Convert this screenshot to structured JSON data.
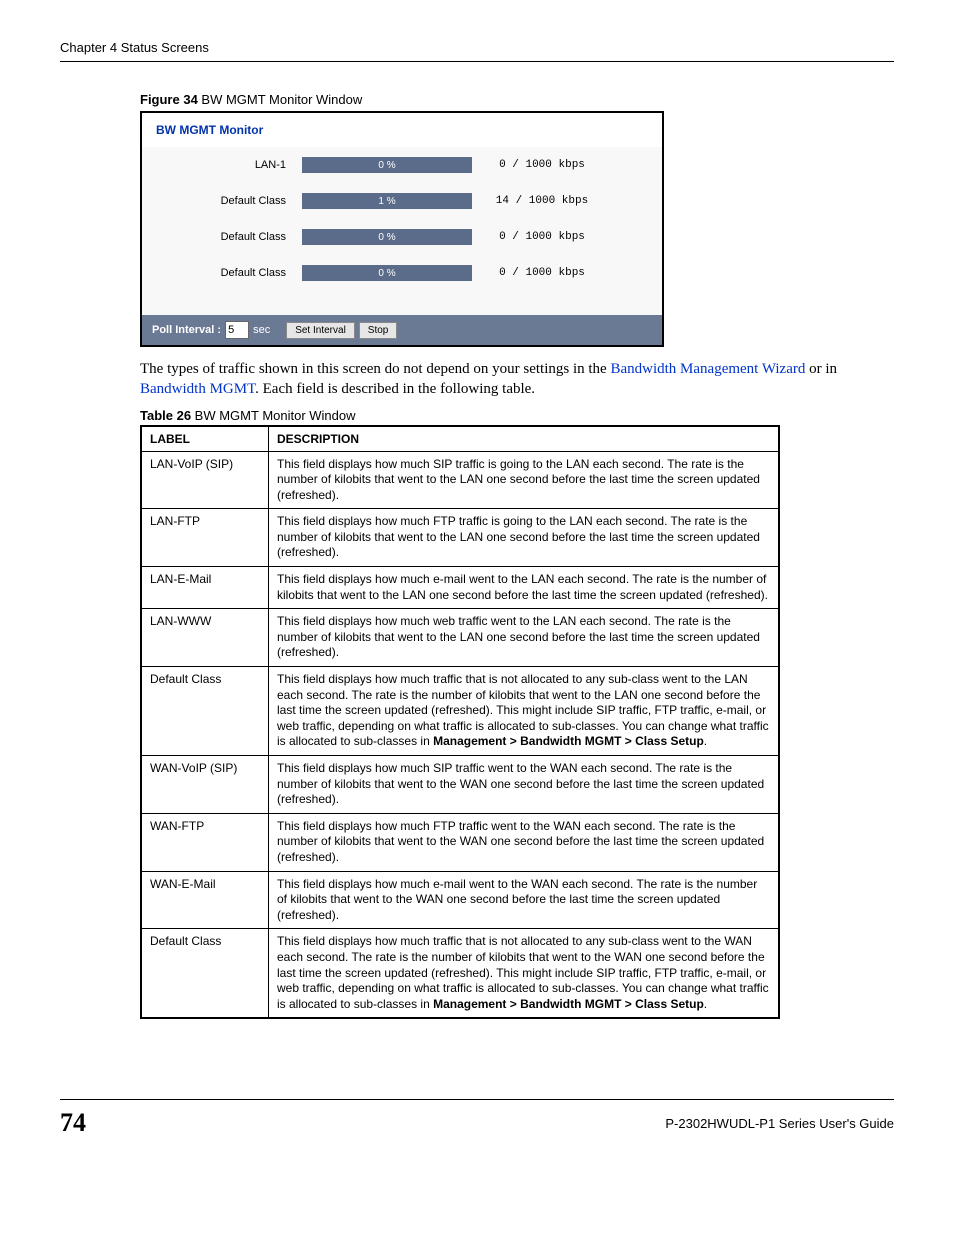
{
  "chapter_header": "Chapter 4 Status Screens",
  "figure_caption_bold": "Figure 34",
  "figure_caption_rest": "   BW MGMT Monitor Window",
  "monitor": {
    "title": "BW MGMT Monitor",
    "rows": [
      {
        "label": "LAN-1",
        "percent": "0 %",
        "value": "0 / 1000  kbps"
      },
      {
        "label": "Default Class",
        "percent": "1 %",
        "value": "14 / 1000  kbps"
      },
      {
        "label": "Default Class",
        "percent": "0 %",
        "value": "0 / 1000  kbps"
      },
      {
        "label": "Default Class",
        "percent": "0 %",
        "value": "0 / 1000  kbps"
      }
    ],
    "footer": {
      "poll_label": "Poll Interval :",
      "poll_value": "5",
      "sec_label": "sec",
      "set_interval_btn": "Set Interval",
      "stop_btn": "Stop"
    },
    "bar_color": "#5a6c8a",
    "footer_bg": "#6b7a94"
  },
  "body_text_pre": "The types of traffic shown in this screen do not depend on your settings in the ",
  "link1": "Bandwidth Management Wizard",
  "body_text_mid": " or in ",
  "link2": "Bandwidth MGMT",
  "body_text_post": ". Each field is described in the following table.",
  "table_caption_bold": "Table 26",
  "table_caption_rest": "   BW MGMT Monitor Window",
  "table_headers": {
    "label": "LABEL",
    "description": "DESCRIPTION"
  },
  "table_rows": [
    {
      "label": "LAN-VoIP (SIP)",
      "desc": "This field displays how much SIP traffic is going to the LAN each second. The rate is the number of kilobits that went to the LAN one second before the last time the screen updated (refreshed)."
    },
    {
      "label": "LAN-FTP",
      "desc": "This field displays how much FTP traffic is going to the LAN each second. The rate is the number of kilobits that went to the LAN one second before the last time the screen updated (refreshed)."
    },
    {
      "label": "LAN-E-Mail",
      "desc": "This field displays how much e-mail went to the LAN each second. The rate is the number of kilobits that went to the LAN one second before the last time the screen updated (refreshed)."
    },
    {
      "label": "LAN-WWW",
      "desc": "This field displays how much web traffic went to the LAN each second. The rate is the number of kilobits that went to the LAN one second before the last time the screen updated (refreshed)."
    },
    {
      "label": "Default Class",
      "desc_pre": "This field displays how much traffic that is not allocated to any sub-class went to the LAN each second. The rate is the number of kilobits that went to the LAN one second before the last time the screen updated (refreshed). This might include SIP traffic, FTP traffic, e-mail, or web traffic, depending on what traffic is allocated to sub-classes. You can change what traffic is allocated to sub-classes in ",
      "desc_bold": "Management > Bandwidth MGMT > Class Setup",
      "desc_post": "."
    },
    {
      "label": "WAN-VoIP (SIP)",
      "desc": "This field displays how much SIP traffic went to the WAN each second. The rate is the number of kilobits that went to the WAN one second before the last time the screen updated (refreshed)."
    },
    {
      "label": "WAN-FTP",
      "desc": "This field displays how much FTP traffic went to the WAN each second. The rate is the number of kilobits that went to the WAN one second before the last time the screen updated (refreshed)."
    },
    {
      "label": "WAN-E-Mail",
      "desc": "This field displays how much e-mail went to the WAN each second. The rate is the number of kilobits that went to the WAN one second before the last time the screen updated (refreshed)."
    },
    {
      "label": "Default Class",
      "desc_pre": "This field displays how much traffic that is not allocated to any sub-class went to the WAN each second. The rate is the number of kilobits that went to the WAN one second before the last time the screen updated (refreshed). This might include SIP traffic, FTP traffic, e-mail, or web traffic, depending on what traffic is allocated to sub-classes. You can change what traffic is allocated to sub-classes in ",
      "desc_bold": "Management > Bandwidth MGMT > Class Setup",
      "desc_post": "."
    }
  ],
  "footer": {
    "page_number": "74",
    "guide_name": "P-2302HWUDL-P1 Series User's Guide"
  }
}
